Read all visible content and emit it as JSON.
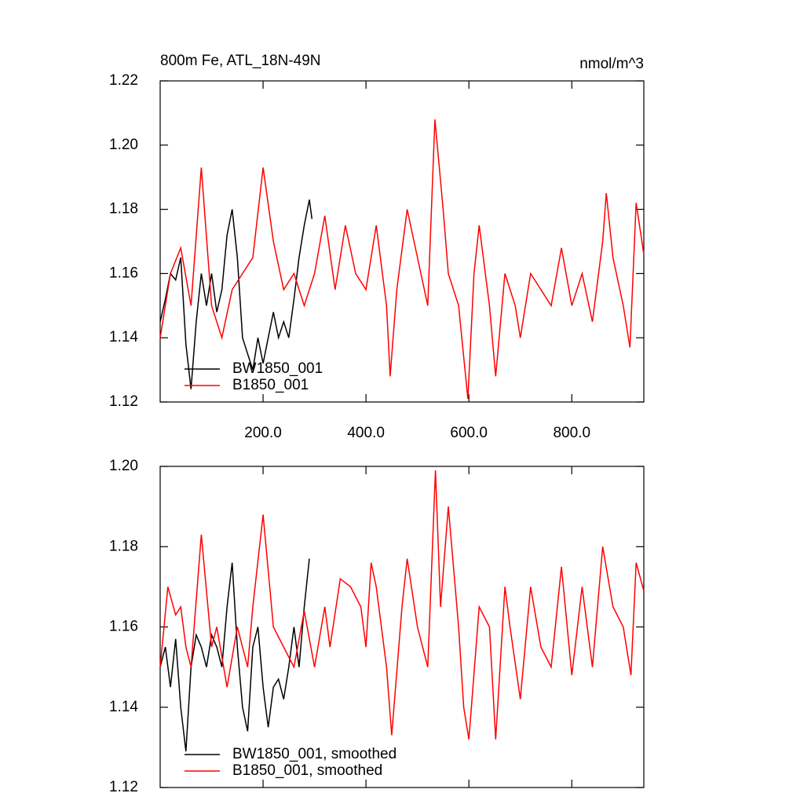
{
  "chart_data": [
    {
      "type": "line",
      "title": "800m Fe, ATL_18N-49N",
      "units": "nmol/m^3",
      "xlim": [
        0,
        940
      ],
      "xticks": [
        {
          "value": 200,
          "label": "200.0"
        },
        {
          "value": 400,
          "label": "400.0"
        },
        {
          "value": 600,
          "label": "600.0"
        },
        {
          "value": 800,
          "label": "800.0"
        }
      ],
      "ylim": [
        1.12,
        1.22
      ],
      "yticks": [
        1.12,
        1.14,
        1.16,
        1.18,
        {
          "value": 1.2,
          "label": "1.20"
        },
        1.22
      ],
      "legend": "lower left",
      "series": [
        {
          "name": "BW1850_001",
          "color": "#000000",
          "x": [
            0,
            10,
            20,
            30,
            40,
            50,
            60,
            70,
            80,
            90,
            100,
            110,
            120,
            130,
            140,
            150,
            160,
            170,
            180,
            190,
            200,
            210,
            220,
            230,
            240,
            250,
            260,
            270,
            280,
            290,
            295
          ],
          "values": [
            1.145,
            1.152,
            1.16,
            1.158,
            1.165,
            1.138,
            1.124,
            1.145,
            1.16,
            1.15,
            1.16,
            1.148,
            1.155,
            1.172,
            1.18,
            1.165,
            1.14,
            1.135,
            1.13,
            1.14,
            1.132,
            1.14,
            1.148,
            1.14,
            1.145,
            1.14,
            1.152,
            1.165,
            1.175,
            1.183,
            1.177
          ]
        },
        {
          "name": "B1850_001",
          "color": "#ff0000",
          "x": [
            0,
            20,
            40,
            60,
            80,
            100,
            120,
            140,
            160,
            180,
            200,
            220,
            240,
            260,
            280,
            300,
            320,
            340,
            360,
            380,
            400,
            420,
            440,
            447,
            460,
            480,
            500,
            520,
            534,
            550,
            560,
            580,
            598,
            610,
            620,
            640,
            652,
            670,
            690,
            700,
            720,
            740,
            760,
            780,
            800,
            820,
            840,
            860,
            867,
            880,
            900,
            913,
            925,
            940
          ],
          "values": [
            1.14,
            1.16,
            1.168,
            1.15,
            1.193,
            1.15,
            1.14,
            1.155,
            1.16,
            1.165,
            1.193,
            1.17,
            1.155,
            1.16,
            1.15,
            1.16,
            1.178,
            1.155,
            1.175,
            1.16,
            1.155,
            1.175,
            1.15,
            1.128,
            1.155,
            1.18,
            1.165,
            1.15,
            1.208,
            1.18,
            1.16,
            1.15,
            1.121,
            1.16,
            1.175,
            1.15,
            1.128,
            1.16,
            1.15,
            1.14,
            1.16,
            1.155,
            1.15,
            1.168,
            1.15,
            1.16,
            1.145,
            1.17,
            1.185,
            1.165,
            1.15,
            1.137,
            1.182,
            1.166
          ]
        }
      ]
    },
    {
      "type": "line",
      "xlim": [
        0,
        940
      ],
      "xticks": [
        200,
        400,
        600,
        800
      ],
      "ylim": [
        1.12,
        1.2
      ],
      "yticks": [
        1.12,
        1.14,
        1.16,
        1.18,
        {
          "value": 1.2,
          "label": "1.20"
        }
      ],
      "legend": "lower left",
      "series": [
        {
          "name": "BW1850_001, smoothed",
          "color": "#000000",
          "x": [
            0,
            10,
            20,
            30,
            40,
            50,
            60,
            70,
            80,
            90,
            100,
            110,
            120,
            130,
            140,
            150,
            160,
            170,
            180,
            190,
            200,
            210,
            220,
            230,
            240,
            250,
            260,
            270,
            280,
            290
          ],
          "values": [
            1.15,
            1.155,
            1.145,
            1.157,
            1.14,
            1.129,
            1.15,
            1.158,
            1.155,
            1.15,
            1.158,
            1.155,
            1.15,
            1.165,
            1.176,
            1.155,
            1.14,
            1.134,
            1.155,
            1.16,
            1.145,
            1.135,
            1.145,
            1.147,
            1.142,
            1.15,
            1.16,
            1.15,
            1.165,
            1.177
          ]
        },
        {
          "name": "B1850_001, smoothed",
          "color": "#ff0000",
          "x": [
            0,
            15,
            30,
            40,
            50,
            60,
            80,
            100,
            110,
            130,
            150,
            170,
            180,
            200,
            220,
            240,
            260,
            280,
            300,
            320,
            330,
            350,
            370,
            390,
            400,
            410,
            420,
            440,
            450,
            470,
            480,
            500,
            520,
            535,
            545,
            560,
            580,
            590,
            600,
            620,
            640,
            652,
            670,
            680,
            700,
            720,
            740,
            760,
            780,
            800,
            820,
            840,
            860,
            880,
            900,
            915,
            925,
            940
          ],
          "values": [
            1.15,
            1.17,
            1.163,
            1.165,
            1.155,
            1.15,
            1.183,
            1.155,
            1.16,
            1.145,
            1.16,
            1.15,
            1.165,
            1.188,
            1.16,
            1.155,
            1.15,
            1.164,
            1.15,
            1.165,
            1.155,
            1.172,
            1.17,
            1.165,
            1.155,
            1.176,
            1.17,
            1.15,
            1.133,
            1.165,
            1.177,
            1.16,
            1.15,
            1.199,
            1.165,
            1.19,
            1.16,
            1.14,
            1.132,
            1.165,
            1.16,
            1.132,
            1.17,
            1.16,
            1.142,
            1.17,
            1.155,
            1.15,
            1.175,
            1.148,
            1.17,
            1.15,
            1.18,
            1.165,
            1.16,
            1.148,
            1.176,
            1.169
          ]
        }
      ]
    }
  ]
}
